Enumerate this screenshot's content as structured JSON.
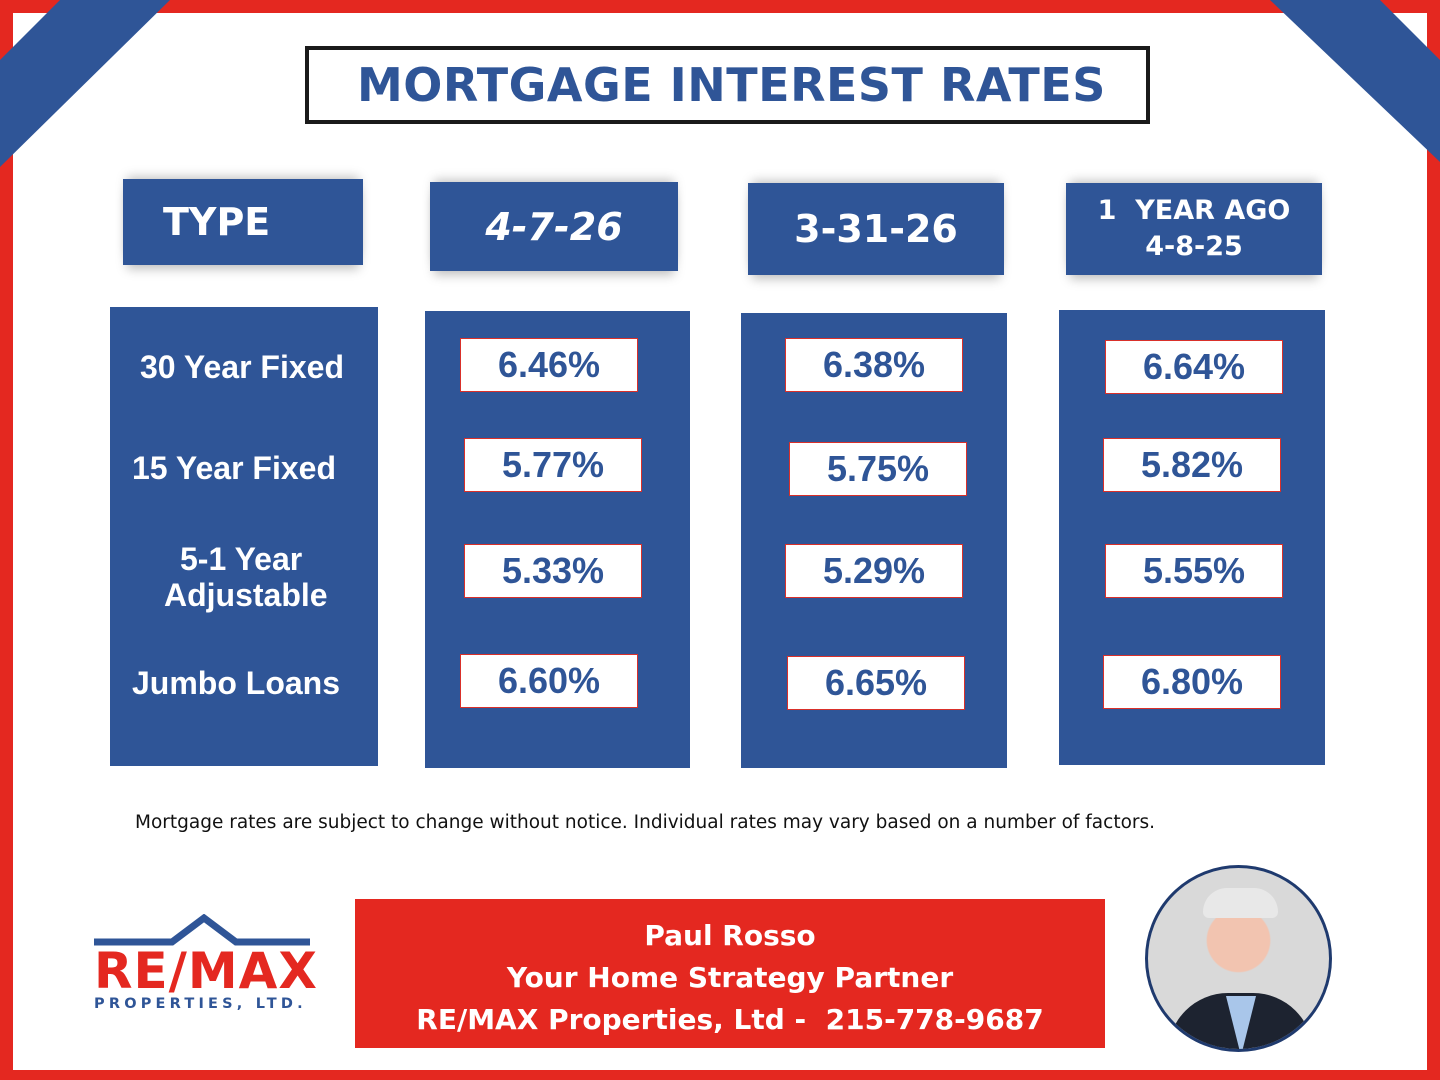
{
  "title": "MORTGAGE INTEREST RATES",
  "colors": {
    "blue": "#2f5597",
    "red": "#e42820"
  },
  "headers": {
    "type": "TYPE",
    "col1": "4-7-26",
    "col2": "3-31-26",
    "col3_line1": "1  YEAR AGO",
    "col3_line2": "4-8-25"
  },
  "types": [
    "30 Year Fixed",
    "15 Year Fixed",
    "5-1 Year",
    "Adjustable",
    "Jumbo Loans"
  ],
  "rates": {
    "col1": [
      "6.46%",
      "5.77%",
      "5.33%",
      "6.60%"
    ],
    "col2": [
      "6.38%",
      "5.75%",
      "5.29%",
      "6.65%"
    ],
    "col3": [
      "6.64%",
      "5.82%",
      "5.55%",
      "6.80%"
    ]
  },
  "disclaimer": "Mortgage rates are subject to change without notice. Individual rates may vary based on a number of factors.",
  "footer": {
    "name": "Paul Rosso",
    "tagline": "Your Home Strategy Partner",
    "company": "RE/MAX Properties, Ltd -  215-778-9687"
  },
  "logo": {
    "brand": "RE/MAX",
    "sub": "PROPERTIES, LTD."
  }
}
